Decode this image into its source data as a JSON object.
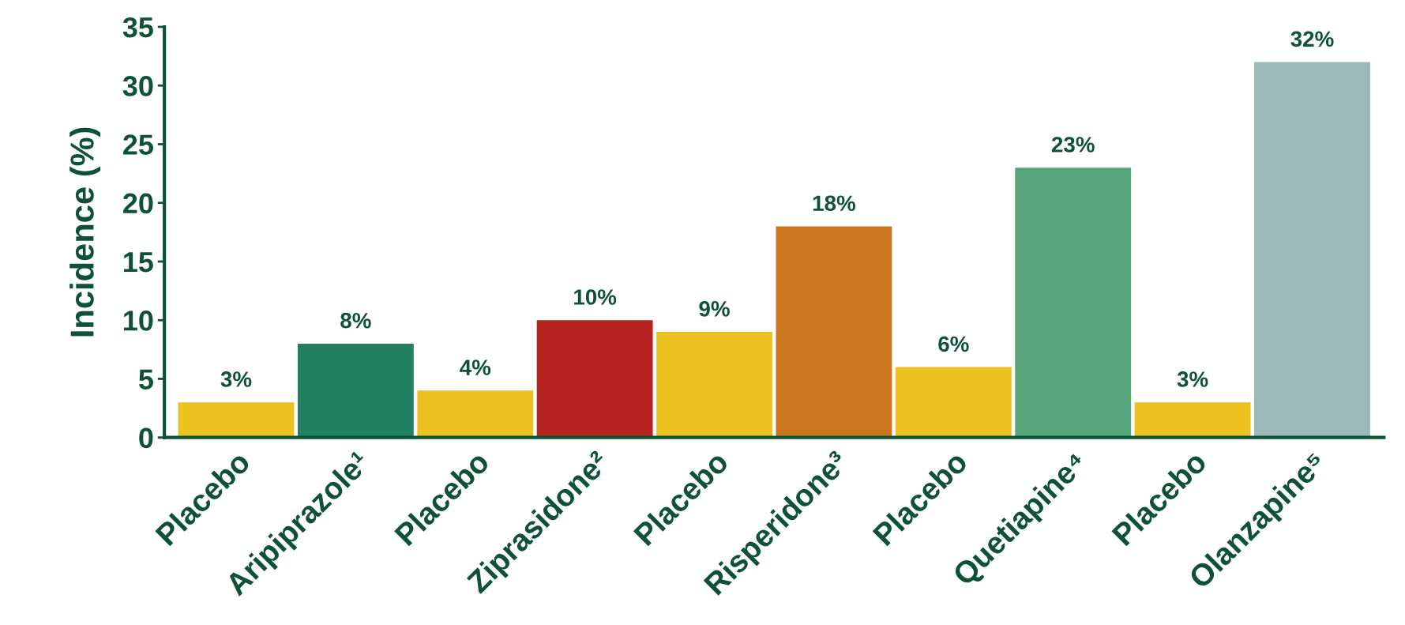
{
  "chart_data": {
    "type": "bar",
    "ylabel": "Incidence (%)",
    "categories": [
      "Placebo",
      "Aripiprazole¹",
      "Placebo",
      "Ziprasidone²",
      "Placebo",
      "Risperidone³",
      "Placebo",
      "Quetiapine⁴",
      "Placebo",
      "Olanzapine⁵"
    ],
    "values": [
      3,
      8,
      4,
      10,
      9,
      18,
      6,
      23,
      3,
      32
    ],
    "colors": [
      "#ebc21f",
      "#238060",
      "#ebc21f",
      "#b52420",
      "#ebc21f",
      "#cb761f",
      "#ebc21f",
      "#57a57a",
      "#ebc21f",
      "#9bb8bb"
    ],
    "value_labels": [
      "3%",
      "8%",
      "4%",
      "10%",
      "9%",
      "18%",
      "6%",
      "23%",
      "3%",
      "32%"
    ],
    "ylim": [
      0,
      35
    ],
    "yticks": [
      0,
      5,
      10,
      15,
      20,
      25,
      30,
      35
    ],
    "grid": false,
    "legend": false
  }
}
